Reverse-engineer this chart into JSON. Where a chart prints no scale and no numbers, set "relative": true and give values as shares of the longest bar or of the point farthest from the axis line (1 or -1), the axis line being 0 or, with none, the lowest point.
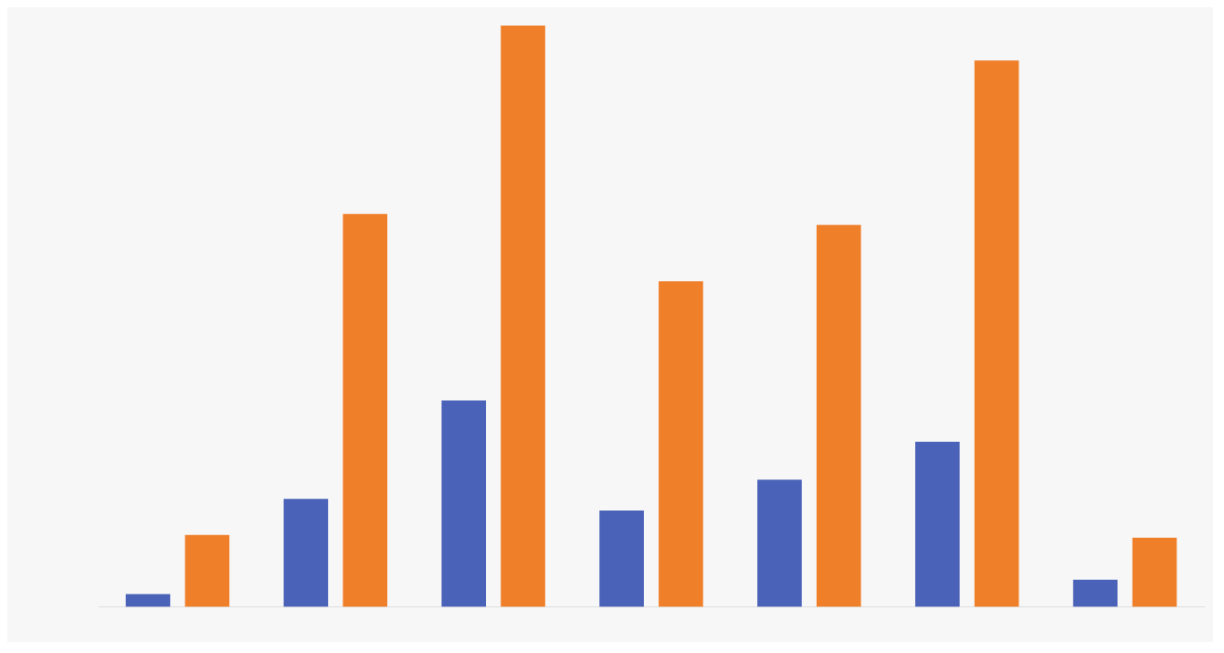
{
  "chart_data": {
    "type": "bar",
    "relative": true,
    "categories": [
      null,
      null,
      null,
      null,
      null,
      null,
      null
    ],
    "series": [
      {
        "color": "#4a62b8",
        "values": [
          0.022,
          0.186,
          0.355,
          0.166,
          0.219,
          0.284,
          0.047
        ]
      },
      {
        "color": "#f07f2a",
        "values": [
          0.124,
          0.676,
          1,
          0.56,
          0.657,
          0.94,
          0.119
        ]
      }
    ]
  }
}
